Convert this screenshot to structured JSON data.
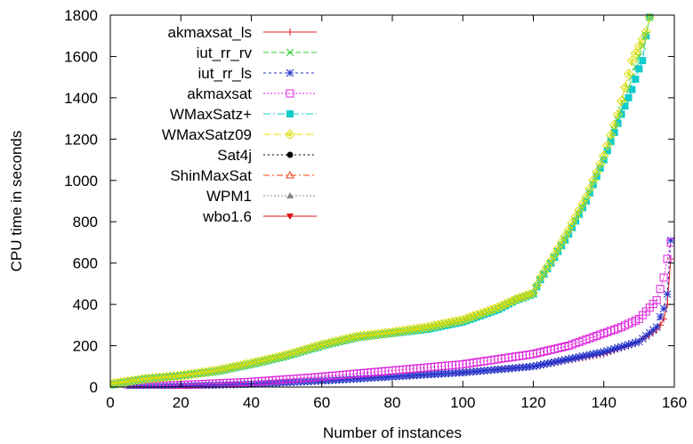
{
  "chart_data": {
    "type": "line",
    "xlabel": "Number of instances",
    "ylabel": "CPU time in seconds",
    "xlim": [
      0,
      160
    ],
    "ylim": [
      0,
      1800
    ],
    "xticks": [
      0,
      20,
      40,
      60,
      80,
      100,
      120,
      140,
      160
    ],
    "yticks": [
      0,
      200,
      400,
      600,
      800,
      1000,
      1200,
      1400,
      1600,
      1800
    ],
    "grid": false,
    "legend_position": "top-left",
    "series": [
      {
        "name": "akmaxsat_ls",
        "color": "#e41a1c",
        "marker": "plus",
        "dash": "",
        "x": [
          5,
          20,
          40,
          60,
          80,
          100,
          120,
          140,
          150,
          155,
          156,
          157,
          158,
          159
        ],
        "y": [
          0,
          5,
          15,
          30,
          50,
          70,
          100,
          160,
          220,
          280,
          300,
          330,
          400,
          620
        ]
      },
      {
        "name": "iut_rr_rv",
        "color": "#33cc33",
        "marker": "x",
        "dash": "6,3",
        "x": [
          0,
          10,
          20,
          30,
          40,
          50,
          60,
          70,
          80,
          90,
          100,
          110,
          115,
          120,
          122,
          125,
          130,
          135,
          140,
          145,
          148,
          150,
          152,
          153
        ],
        "y": [
          10,
          40,
          55,
          75,
          110,
          150,
          200,
          240,
          260,
          285,
          320,
          380,
          420,
          450,
          520,
          600,
          740,
          900,
          1100,
          1340,
          1500,
          1600,
          1700,
          1790
        ]
      },
      {
        "name": "iut_rr_ls",
        "color": "#2233cc",
        "marker": "star",
        "dash": "3,3",
        "x": [
          5,
          20,
          40,
          60,
          80,
          100,
          120,
          140,
          150,
          155,
          156,
          157,
          158,
          159
        ],
        "y": [
          0,
          5,
          15,
          30,
          50,
          70,
          100,
          170,
          220,
          290,
          340,
          380,
          450,
          710
        ]
      },
      {
        "name": "akmaxsat",
        "color": "#dd22dd",
        "marker": "square",
        "dash": "2,2",
        "x": [
          5,
          20,
          40,
          60,
          80,
          100,
          120,
          130,
          140,
          145,
          150,
          155,
          157,
          158,
          159
        ],
        "y": [
          0,
          10,
          25,
          50,
          80,
          110,
          160,
          200,
          260,
          290,
          330,
          420,
          530,
          620,
          700
        ]
      },
      {
        "name": "WMaxSatz+",
        "color": "#11cccc",
        "marker": "filled-square",
        "dash": "8,3,2,3",
        "x": [
          0,
          10,
          20,
          30,
          40,
          50,
          60,
          70,
          80,
          90,
          100,
          110,
          115,
          120,
          122,
          125,
          130,
          135,
          140,
          145,
          148,
          150,
          151,
          152,
          153
        ],
        "y": [
          10,
          40,
          55,
          75,
          110,
          150,
          200,
          240,
          260,
          280,
          315,
          375,
          420,
          450,
          520,
          600,
          740,
          900,
          1100,
          1320,
          1440,
          1540,
          1580,
          1700,
          1790
        ]
      },
      {
        "name": "WMaxSatz09",
        "color": "#dddd00",
        "marker": "diamond",
        "dash": "8,4",
        "x": [
          0,
          10,
          20,
          30,
          40,
          50,
          60,
          70,
          80,
          90,
          100,
          110,
          115,
          120,
          122,
          125,
          130,
          135,
          140,
          144,
          146,
          148,
          150,
          152,
          153
        ],
        "y": [
          15,
          40,
          55,
          80,
          115,
          155,
          205,
          245,
          265,
          290,
          325,
          385,
          425,
          455,
          530,
          610,
          760,
          920,
          1120,
          1320,
          1450,
          1580,
          1650,
          1720,
          1790
        ]
      },
      {
        "name": "Sat4j",
        "color": "#000000",
        "marker": "filled-circle",
        "dash": "2,3",
        "x": [],
        "y": []
      },
      {
        "name": "ShinMaxSat",
        "color": "#ee4411",
        "marker": "triangle",
        "dash": "7,3,2,3",
        "x": [],
        "y": []
      },
      {
        "name": "WPM1",
        "color": "#888888",
        "marker": "filled-triangle",
        "dash": "2,2",
        "x": [],
        "y": []
      },
      {
        "name": "wbo1.6",
        "color": "#dd1111",
        "marker": "filled-triangle-down",
        "dash": "",
        "x": [],
        "y": []
      }
    ]
  }
}
